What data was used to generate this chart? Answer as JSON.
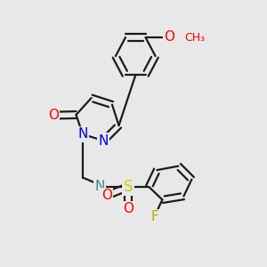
{
  "bg_color": "#e8e8e8",
  "bond_color": "#1a1a1a",
  "bond_width": 1.6,
  "dbo": 0.012,
  "colors": {
    "O": "#ff0000",
    "N": "#0000dd",
    "S": "#cccc00",
    "F": "#b0b000",
    "NH": "#3a8888",
    "H": "#3a8888"
  }
}
